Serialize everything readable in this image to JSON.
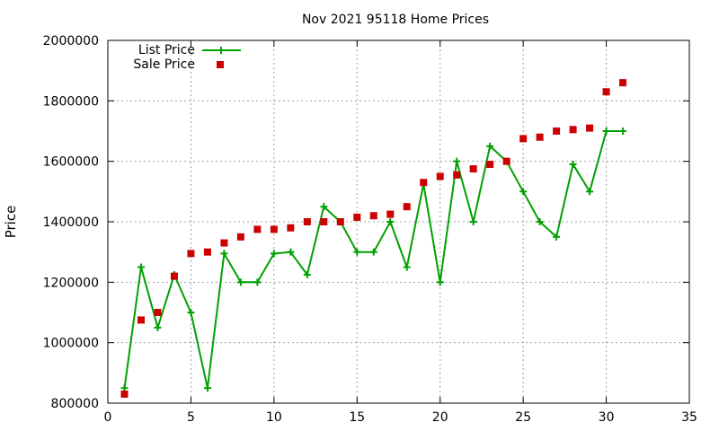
{
  "chart_data": {
    "type": "line",
    "title": "Nov 2021 95118 Home Prices",
    "xlabel": "",
    "ylabel": "Price",
    "xlim": [
      0,
      35
    ],
    "ylim": [
      800000,
      2000000
    ],
    "xticks": [
      0,
      5,
      10,
      15,
      20,
      25,
      30,
      35
    ],
    "yticks": [
      800000,
      1000000,
      1200000,
      1400000,
      1600000,
      1800000,
      2000000
    ],
    "grid": true,
    "legend_position": "top-left",
    "colors": {
      "list": "#00a000",
      "sale": "#cc0000"
    },
    "x": [
      1,
      2,
      3,
      4,
      5,
      6,
      7,
      8,
      9,
      10,
      11,
      12,
      13,
      14,
      15,
      16,
      17,
      18,
      19,
      20,
      21,
      22,
      23,
      24,
      25,
      26,
      27,
      28,
      29,
      30,
      31
    ],
    "series": [
      {
        "name": "List Price",
        "style": "line-points",
        "values": [
          850000,
          1250000,
          1050000,
          1225000,
          1100000,
          850000,
          1295000,
          1200000,
          1200000,
          1295000,
          1300000,
          1225000,
          1450000,
          1400000,
          1300000,
          1300000,
          1400000,
          1250000,
          1525000,
          1200000,
          1600000,
          1400000,
          1650000,
          1600000,
          1500000,
          1400000,
          1350000,
          1590000,
          1500000,
          1700000,
          1700000
        ]
      },
      {
        "name": "Sale Price",
        "style": "points",
        "values": [
          830000,
          1075000,
          1100000,
          1220000,
          1295000,
          1300000,
          1330000,
          1350000,
          1375000,
          1375000,
          1380000,
          1400000,
          1400000,
          1400000,
          1415000,
          1420000,
          1425000,
          1450000,
          1530000,
          1550000,
          1555000,
          1575000,
          1590000,
          1600000,
          1675000,
          1680000,
          1700000,
          1705000,
          1710000,
          1830000,
          1860000
        ]
      }
    ]
  }
}
